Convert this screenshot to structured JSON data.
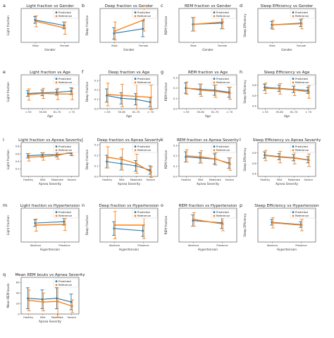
{
  "colors": {
    "predicted": "#1f77b4",
    "reference": "#ff7f0e"
  },
  "legend": {
    "predicted": "Predicted",
    "reference": "Reference"
  },
  "chart_data": [
    {
      "id": "a",
      "type": "line",
      "title": "Light fraction vs Gender",
      "xlabel": "Gender",
      "ylabel": "Light fraction",
      "categories": [
        "Male",
        "Female"
      ],
      "ylim": [
        0.3,
        0.8
      ],
      "yticks": [],
      "series": [
        {
          "name": "Predicted",
          "values": [
            0.63,
            0.55
          ],
          "err": [
            0.05,
            0.05
          ]
        },
        {
          "name": "Reference",
          "values": [
            0.61,
            0.51
          ],
          "err": [
            0.08,
            0.09
          ]
        }
      ]
    },
    {
      "id": "b",
      "type": "line",
      "title": "Deep fraction vs Gender",
      "xlabel": "Gender",
      "ylabel": "Deep fraction",
      "categories": [
        "Male",
        "Female"
      ],
      "ylim": [
        0,
        0.3
      ],
      "yticks": [],
      "series": [
        {
          "name": "Predicted",
          "values": [
            0.08,
            0.12
          ],
          "err": [
            0.05,
            0.07
          ]
        },
        {
          "name": "Reference",
          "values": [
            0.1,
            0.2
          ],
          "err": [
            0.08,
            0.1
          ]
        }
      ]
    },
    {
      "id": "c",
      "type": "line",
      "title": "REM fraction vs Gender",
      "xlabel": "Gender",
      "ylabel": "REM fraction",
      "categories": [
        "Male",
        "Female"
      ],
      "ylim": [
        0,
        0.3
      ],
      "yticks": [],
      "series": [
        {
          "name": "Predicted",
          "values": [
            0.16,
            0.17
          ],
          "err": [
            0.06,
            0.05
          ]
        },
        {
          "name": "Reference",
          "values": [
            0.16,
            0.18
          ],
          "err": [
            0.06,
            0.06
          ]
        }
      ]
    },
    {
      "id": "d",
      "type": "line",
      "title": "Sleep Efficiency vs Gender",
      "xlabel": "Gender",
      "ylabel": "Sleep Efficiency",
      "categories": [
        "Male",
        "Female"
      ],
      "ylim": [
        0.4,
        1.0
      ],
      "yticks": [],
      "series": [
        {
          "name": "Predicted",
          "values": [
            0.71,
            0.74
          ],
          "err": [
            0.06,
            0.06
          ]
        },
        {
          "name": "Reference",
          "values": [
            0.71,
            0.73
          ],
          "err": [
            0.08,
            0.09
          ]
        }
      ]
    },
    {
      "id": "e",
      "type": "line",
      "title": "Light fraction vs Age",
      "xlabel": "Age",
      "ylabel": "Light fraction",
      "categories": [
        "< 55",
        "55-60",
        "61-70",
        "> 70"
      ],
      "ylim": [
        0.3,
        0.9
      ],
      "yticks": [],
      "series": [
        {
          "name": "Predicted",
          "values": [
            0.57,
            0.58,
            0.59,
            0.61
          ],
          "err": [
            0.05,
            0.05,
            0.05,
            0.06
          ]
        },
        {
          "name": "Reference",
          "values": [
            0.55,
            0.57,
            0.56,
            0.56
          ],
          "err": [
            0.1,
            0.09,
            0.1,
            0.1
          ]
        }
      ]
    },
    {
      "id": "f",
      "type": "line",
      "title": "Deep fraction vs Age",
      "xlabel": "Age",
      "ylabel": "Deep fraction",
      "categories": [
        "< 55",
        "55-60",
        "61-70",
        "> 70"
      ],
      "ylim": [
        0,
        0.36
      ],
      "yticks": [
        "0.0",
        "0.1",
        "0.2",
        "0.3"
      ],
      "series": [
        {
          "name": "Predicted",
          "values": [
            0.14,
            0.11,
            0.1,
            0.07
          ],
          "err": [
            0.07,
            0.06,
            0.06,
            0.05
          ]
        },
        {
          "name": "Reference",
          "values": [
            0.15,
            0.14,
            0.13,
            0.12
          ],
          "err": [
            0.12,
            0.12,
            0.13,
            0.13
          ]
        }
      ]
    },
    {
      "id": "g",
      "type": "line",
      "title": "REM fraction vs Age",
      "xlabel": "Age",
      "ylabel": "REM fraction",
      "categories": [
        "< 55",
        "55-60",
        "61-70",
        "> 70"
      ],
      "ylim": [
        0,
        0.33
      ],
      "yticks": [
        "0.0",
        "0.1",
        "0.2",
        "0.3"
      ],
      "series": [
        {
          "name": "Predicted",
          "values": [
            0.2,
            0.19,
            0.18,
            0.16
          ],
          "err": [
            0.05,
            0.05,
            0.05,
            0.05
          ]
        },
        {
          "name": "Reference",
          "values": [
            0.2,
            0.18,
            0.17,
            0.15
          ],
          "err": [
            0.06,
            0.06,
            0.06,
            0.06
          ]
        }
      ]
    },
    {
      "id": "h",
      "type": "line",
      "title": "Sleep Efficiency vs Age",
      "xlabel": "Age",
      "ylabel": "Sleep Efficiency",
      "categories": [
        "< 55",
        "55-60",
        "61-70",
        "> 70"
      ],
      "ylim": [
        0.35,
        1.0
      ],
      "yticks": [
        "0.4",
        "0.6",
        "0.8"
      ],
      "series": [
        {
          "name": "Predicted",
          "values": [
            0.76,
            0.74,
            0.72,
            0.7
          ],
          "err": [
            0.06,
            0.06,
            0.06,
            0.06
          ]
        },
        {
          "name": "Reference",
          "values": [
            0.74,
            0.73,
            0.71,
            0.67
          ],
          "err": [
            0.1,
            0.1,
            0.11,
            0.12
          ]
        }
      ]
    },
    {
      "id": "i",
      "type": "line",
      "title": "Light fraction vs Apnea Severity",
      "xlabel": "Apnea Severity",
      "ylabel": "Light fraction",
      "categories": [
        "Healthy",
        "Mild",
        "Moderate",
        "Severe"
      ],
      "ylim": [
        0,
        0.9
      ],
      "yticks": [
        "0.2",
        "0.4",
        "0.6",
        "0.8"
      ],
      "series": [
        {
          "name": "Predicted",
          "values": [
            0.55,
            0.57,
            0.58,
            0.62
          ],
          "err": [
            0.06,
            0.06,
            0.06,
            0.06
          ]
        },
        {
          "name": "Reference",
          "values": [
            0.51,
            0.53,
            0.56,
            0.65
          ],
          "err": [
            0.1,
            0.1,
            0.1,
            0.1
          ]
        }
      ]
    },
    {
      "id": "j",
      "type": "line",
      "title": "Deep fraction vs Apnea Severity",
      "xlabel": "Apnea Severity",
      "ylabel": "Deep fraction",
      "categories": [
        "Healthy",
        "Mild",
        "Moderate",
        "Severe"
      ],
      "ylim": [
        0,
        0.32
      ],
      "yticks": [
        "0.0",
        "0.1",
        "0.2",
        "0.3"
      ],
      "series": [
        {
          "name": "Predicted",
          "values": [
            0.14,
            0.12,
            0.1,
            0.06
          ],
          "err": [
            0.06,
            0.06,
            0.05,
            0.04
          ]
        },
        {
          "name": "Reference",
          "values": [
            0.18,
            0.16,
            0.12,
            0.04
          ],
          "err": [
            0.1,
            0.1,
            0.09,
            0.05
          ]
        }
      ]
    },
    {
      "id": "k",
      "type": "line",
      "title": "REM fraction vs Apnea Severity",
      "xlabel": "Apnea Severity",
      "ylabel": "REM fraction",
      "categories": [
        "Healthy",
        "Mild",
        "Moderate",
        "Severe"
      ],
      "ylim": [
        0,
        0.33
      ],
      "yticks": [
        "0.0",
        "0.1",
        "0.2",
        "0.3"
      ],
      "series": [
        {
          "name": "Predicted",
          "values": [
            0.19,
            0.18,
            0.17,
            0.13
          ],
          "err": [
            0.05,
            0.05,
            0.05,
            0.05
          ]
        },
        {
          "name": "Reference",
          "values": [
            0.2,
            0.19,
            0.17,
            0.12
          ],
          "err": [
            0.06,
            0.06,
            0.06,
            0.06
          ]
        }
      ]
    },
    {
      "id": "l",
      "type": "line",
      "title": "Sleep Efficiency vs Apnea Severity",
      "xlabel": "Apnea Severity",
      "ylabel": "Sleep Efficiency",
      "categories": [
        "Healthy",
        "Mild",
        "Moderate",
        "Severe"
      ],
      "ylim": [
        0.35,
        1.0
      ],
      "yticks": [
        "0.4",
        "0.6",
        "0.8"
      ],
      "series": [
        {
          "name": "Predicted",
          "values": [
            0.76,
            0.73,
            0.71,
            0.67
          ],
          "err": [
            0.06,
            0.06,
            0.06,
            0.06
          ]
        },
        {
          "name": "Reference",
          "values": [
            0.75,
            0.72,
            0.7,
            0.66
          ],
          "err": [
            0.1,
            0.11,
            0.11,
            0.12
          ]
        }
      ]
    },
    {
      "id": "m",
      "type": "line",
      "title": "Light fraction vs Hypertension",
      "xlabel": "Hypertension",
      "ylabel": "Light fraction",
      "categories": [
        "Absence",
        "Presence"
      ],
      "ylim": [
        0.3,
        0.8
      ],
      "yticks": [],
      "series": [
        {
          "name": "Predicted",
          "values": [
            0.58,
            0.6
          ],
          "err": [
            0.05,
            0.05
          ]
        },
        {
          "name": "Reference",
          "values": [
            0.55,
            0.56
          ],
          "err": [
            0.09,
            0.09
          ]
        }
      ]
    },
    {
      "id": "n",
      "type": "line",
      "title": "Deep fraction vs Hypertension",
      "xlabel": "Hypertension",
      "ylabel": "Deep fraction",
      "categories": [
        "Absence",
        "Presence"
      ],
      "ylim": [
        0,
        0.3
      ],
      "yticks": [],
      "series": [
        {
          "name": "Predicted",
          "values": [
            0.12,
            0.1
          ],
          "err": [
            0.06,
            0.05
          ]
        },
        {
          "name": "Reference",
          "values": [
            0.15,
            0.15
          ],
          "err": [
            0.12,
            0.12
          ]
        }
      ]
    },
    {
      "id": "o",
      "type": "line",
      "title": "REM fraction vs Hypertension",
      "xlabel": "Hypertension",
      "ylabel": "REM fraction",
      "categories": [
        "Absence",
        "Presence"
      ],
      "ylim": [
        0,
        0.3
      ],
      "yticks": [],
      "series": [
        {
          "name": "Predicted",
          "values": [
            0.19,
            0.17
          ],
          "err": [
            0.05,
            0.05
          ]
        },
        {
          "name": "Reference",
          "values": [
            0.2,
            0.16
          ],
          "err": [
            0.06,
            0.06
          ]
        }
      ]
    },
    {
      "id": "p",
      "type": "line",
      "title": "Sleep Efficiency vs Hypertension",
      "xlabel": "Hypertension",
      "ylabel": "Sleep Efficiency",
      "categories": [
        "Absence",
        "Presence"
      ],
      "ylim": [
        0.4,
        1.0
      ],
      "yticks": [],
      "series": [
        {
          "name": "Predicted",
          "values": [
            0.75,
            0.71
          ],
          "err": [
            0.05,
            0.05
          ]
        },
        {
          "name": "Reference",
          "values": [
            0.74,
            0.7
          ],
          "err": [
            0.09,
            0.1
          ]
        }
      ]
    },
    {
      "id": "q",
      "type": "line",
      "title": "Mean REM bouts vs Apnea Severity",
      "xlabel": "Apnea Severity",
      "ylabel": "Mean REM bouts",
      "categories": [
        "Healthy",
        "Mild",
        "Moderate",
        "Severe"
      ],
      "ylim": [
        0,
        70
      ],
      "yticks": [
        "0",
        "20",
        "40",
        "60"
      ],
      "series": [
        {
          "name": "Predicted",
          "values": [
            30,
            28,
            30,
            23
          ],
          "err": [
            20,
            18,
            20,
            15
          ]
        },
        {
          "name": "Reference",
          "values": [
            26,
            23,
            24,
            15
          ],
          "err": [
            20,
            17,
            30,
            12
          ]
        }
      ]
    }
  ]
}
